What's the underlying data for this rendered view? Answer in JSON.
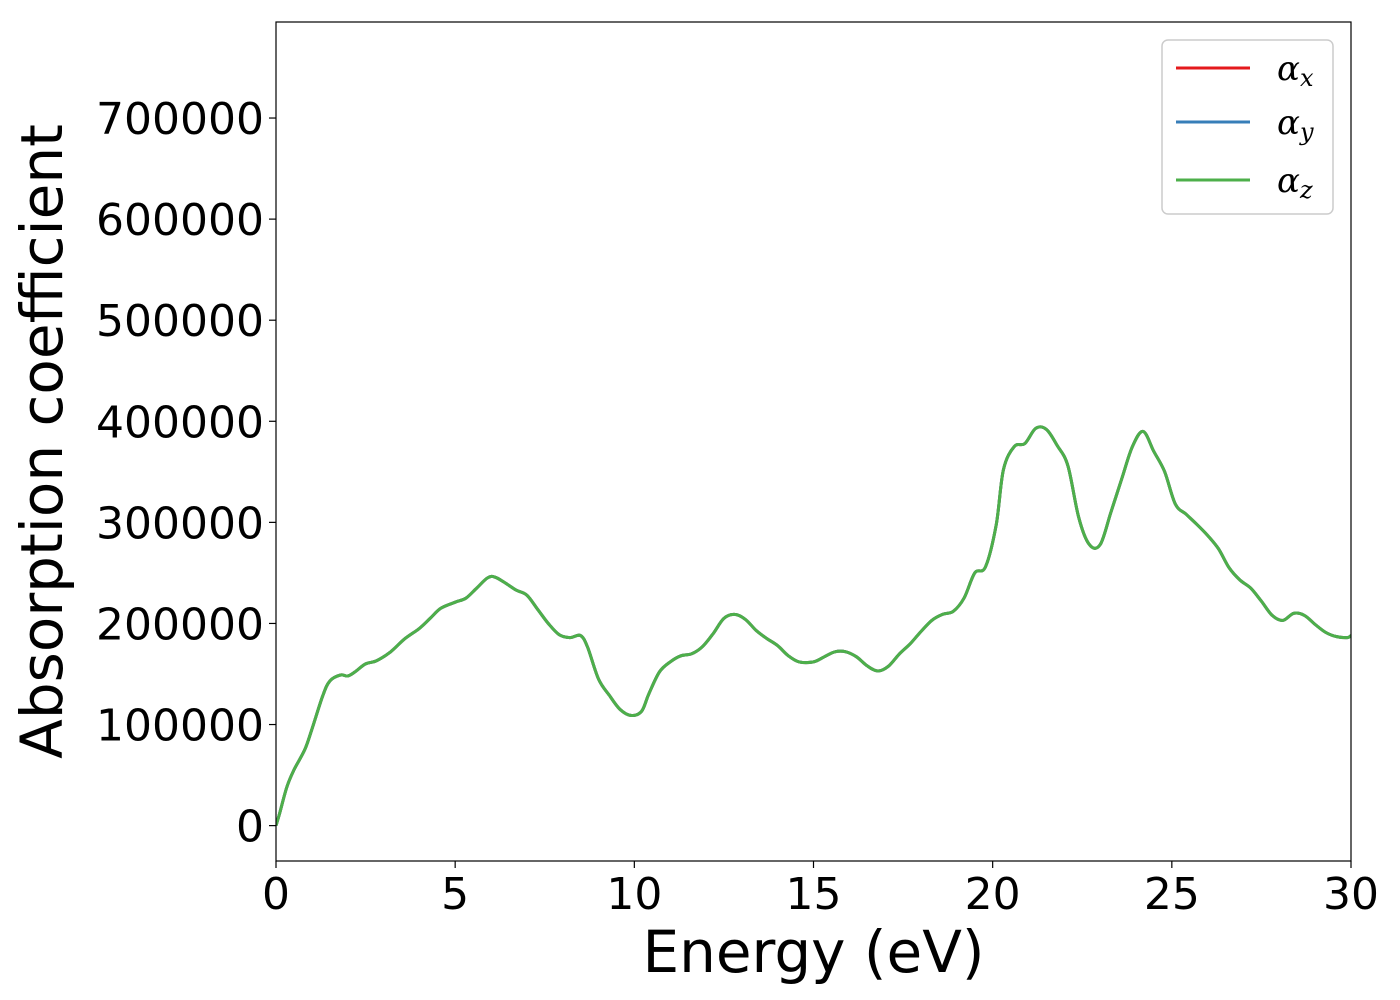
{
  "chart_data": {
    "type": "line",
    "xlabel": "Energy (eV)",
    "ylabel": "Absorption coefficient",
    "xlim": [
      0,
      30
    ],
    "ylim": [
      -35000,
      795000
    ],
    "xticks": [
      0,
      5,
      10,
      15,
      20,
      25,
      30
    ],
    "yticks": [
      0,
      100000,
      200000,
      300000,
      400000,
      500000,
      600000,
      700000
    ],
    "grid": false,
    "legend_position": "top-right",
    "series": [
      {
        "name": "x",
        "color": "#e41a1c"
      },
      {
        "name": "y",
        "color": "#377eb8"
      },
      {
        "name": "z",
        "color": "#4daf4a"
      }
    ],
    "curve": {
      "x": [
        0,
        0.1,
        0.3,
        0.5,
        0.8,
        1.0,
        1.3,
        1.5,
        1.8,
        2.0,
        2.2,
        2.5,
        2.8,
        3.2,
        3.6,
        4.0,
        4.3,
        4.6,
        5.0,
        5.3,
        5.6,
        5.9,
        6.1,
        6.4,
        6.7,
        7.0,
        7.3,
        7.6,
        7.9,
        8.2,
        8.5,
        8.7,
        9.0,
        9.3,
        9.6,
        9.9,
        10.2,
        10.4,
        10.7,
        11.0,
        11.3,
        11.6,
        11.9,
        12.2,
        12.5,
        12.8,
        13.1,
        13.4,
        13.7,
        14.0,
        14.3,
        14.6,
        15.0,
        15.3,
        15.6,
        15.9,
        16.2,
        16.5,
        16.8,
        17.1,
        17.4,
        17.7,
        18.0,
        18.3,
        18.6,
        18.9,
        19.2,
        19.5,
        19.8,
        20.1,
        20.3,
        20.6,
        20.9,
        21.2,
        21.5,
        21.8,
        22.1,
        22.4,
        22.7,
        23.0,
        23.3,
        23.6,
        23.9,
        24.2,
        24.5,
        24.8,
        25.1,
        25.4,
        25.7,
        26.0,
        26.3,
        26.6,
        26.9,
        27.2,
        27.5,
        27.8,
        28.1,
        28.4,
        28.7,
        29.0,
        29.3,
        29.6,
        29.9,
        30.0
      ],
      "y": [
        0,
        12000,
        38000,
        55000,
        75000,
        95000,
        128000,
        143000,
        149000,
        148000,
        152000,
        160000,
        163000,
        172000,
        185000,
        195000,
        205000,
        215000,
        221000,
        225000,
        235000,
        245000,
        246000,
        240000,
        233000,
        228000,
        214000,
        200000,
        189000,
        186000,
        188000,
        176000,
        145000,
        129000,
        115000,
        109000,
        113000,
        130000,
        152000,
        162000,
        168000,
        170000,
        177000,
        190000,
        205000,
        209000,
        204000,
        193000,
        185000,
        178000,
        168000,
        162000,
        162000,
        167000,
        172000,
        172000,
        167000,
        158000,
        153000,
        158000,
        170000,
        180000,
        192000,
        203000,
        209000,
        212000,
        225000,
        250000,
        256000,
        298000,
        352000,
        375000,
        378000,
        393000,
        392000,
        376000,
        356000,
        305000,
        278000,
        278000,
        310000,
        343000,
        375000,
        390000,
        370000,
        350000,
        318000,
        308000,
        298000,
        287000,
        274000,
        255000,
        243000,
        235000,
        222000,
        208000,
        203000,
        210000,
        208000,
        199000,
        191000,
        187000,
        186000,
        188000
      ]
    }
  }
}
